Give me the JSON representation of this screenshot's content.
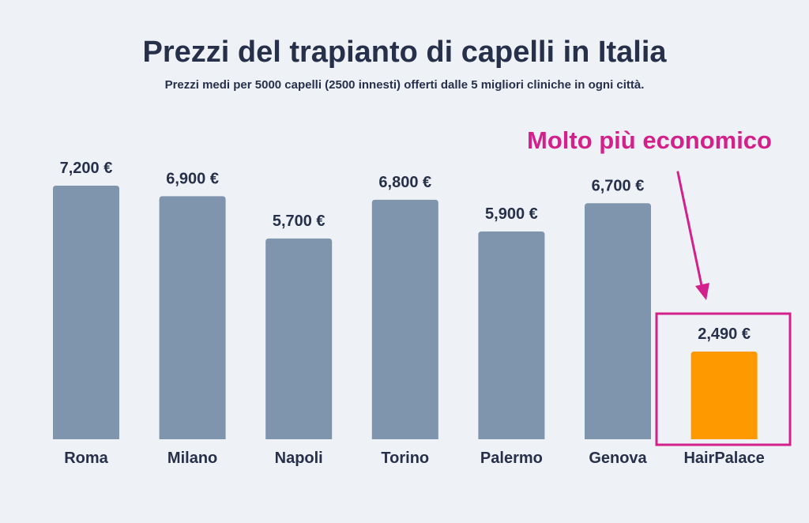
{
  "chart_data": {
    "type": "bar",
    "title": "Prezzi del trapianto di capelli in Italia",
    "subtitle": "Prezzi medi per 5000 capelli (2500 innesti) offerti dalle 5 migliori cliniche in ogni città.",
    "categories": [
      "Roma",
      "Milano",
      "Napoli",
      "Torino",
      "Palermo",
      "Genova",
      "HairPalace"
    ],
    "values": [
      7200,
      6900,
      5700,
      6800,
      5900,
      6700,
      2490
    ],
    "value_labels": [
      "7,200 €",
      "6,900 €",
      "5,700 €",
      "6,800 €",
      "5,900 €",
      "6,700 €",
      "2,490 €"
    ],
    "xlabel": "",
    "ylabel": "",
    "ylim": [
      0,
      7200
    ],
    "grid": false,
    "highlight_index": 6,
    "annotation": "Molto più economico"
  },
  "colors": {
    "background": "#eef1f5",
    "bar": "#7f94ad",
    "highlight_bar": "#ff9900",
    "accent": "#d4208a",
    "text": "#27304a"
  }
}
